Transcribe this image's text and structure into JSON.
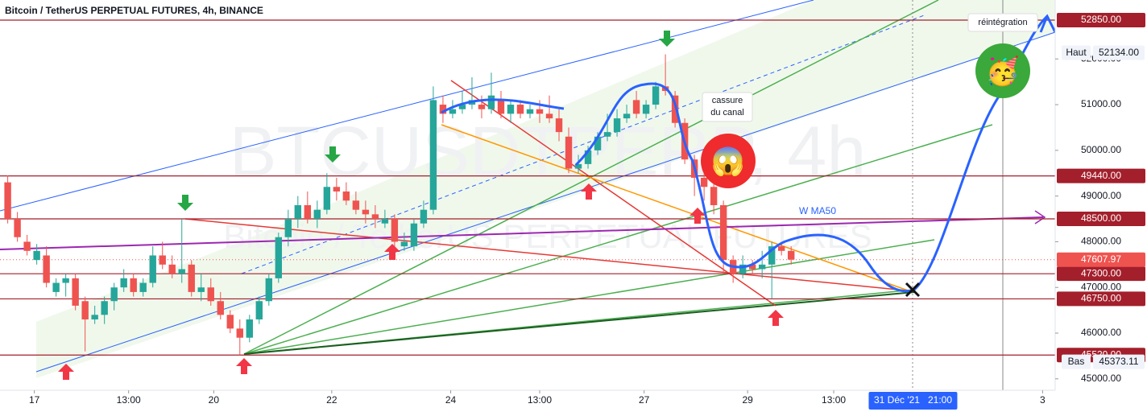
{
  "header": {
    "title": "Bitcoin / TetherUS PERPETUAL FUTURES, 4h, BINANCE"
  },
  "watermark": {
    "symbol": "BTCUSDTPERP, 4h",
    "name": "Bitcoin / TetherUS PERPETUAL FUTURES"
  },
  "annotations": {
    "reintegration": "réintégration",
    "cassure": [
      "cassure",
      "du canal"
    ],
    "ma": "W MA50",
    "scared": "😱",
    "party": "🥳"
  },
  "chart_data": {
    "type": "candlestick",
    "up_color": "#26a69a",
    "down_color": "#ef5350",
    "xlim": [
      -0.8,
      108.3
    ],
    "ylim": [
      44750,
      53290
    ],
    "yticks": [
      {
        "value": 45000,
        "label": "45000.00"
      },
      {
        "value": 46000,
        "label": "46000.00"
      },
      {
        "value": 47000,
        "label": "47000.00"
      },
      {
        "value": 48000,
        "label": "48000.00"
      },
      {
        "value": 49000,
        "label": "49000.00"
      },
      {
        "value": 50000,
        "label": "50000.00"
      },
      {
        "value": 51000,
        "label": "51000.00"
      },
      {
        "value": 52000,
        "label": "52000.00"
      }
    ],
    "xticks": [
      {
        "value": 2.75,
        "label": "17"
      },
      {
        "value": 12.5,
        "label": "13:00"
      },
      {
        "value": 21.3,
        "label": "20"
      },
      {
        "value": 33.5,
        "label": "22"
      },
      {
        "value": 45.8,
        "label": "24"
      },
      {
        "value": 55,
        "label": "13:00"
      },
      {
        "value": 65.8,
        "label": "27"
      },
      {
        "value": 76.5,
        "label": "29"
      },
      {
        "value": 85.4,
        "label": "13:00"
      },
      {
        "value": 107,
        "label": "3"
      }
    ],
    "cursor_time": {
      "value": 93.6,
      "label": "31 Déc '21   21:00"
    },
    "levels": [
      {
        "value": 52850,
        "label": "52850.00"
      },
      {
        "value": 49440,
        "label": "49440.00"
      },
      {
        "value": 48500,
        "label": "48500.00"
      },
      {
        "value": 47300,
        "label": "47300.00"
      },
      {
        "value": 46750,
        "label": "46750.00"
      },
      {
        "value": 45520,
        "label": "45520.00"
      }
    ],
    "last_price": 47607.97,
    "high": {
      "name": "Haut",
      "value": {
        "value": 52134,
        "label": "52134.00"
      }
    },
    "low": {
      "name": "Bas",
      "value": 45373.11
    },
    "candles": [
      {
        "o": 49300,
        "h": 49450,
        "l": 48400,
        "c": 48500
      },
      {
        "o": 48500,
        "h": 48650,
        "l": 48000,
        "c": 48100
      },
      {
        "o": 48000,
        "h": 48150,
        "l": 47700,
        "c": 47800
      },
      {
        "o": 47600,
        "h": 47950,
        "l": 47500,
        "c": 47800
      },
      {
        "o": 47700,
        "h": 47900,
        "l": 47000,
        "c": 47100
      },
      {
        "o": 46900,
        "h": 47200,
        "l": 46800,
        "c": 47100
      },
      {
        "o": 47100,
        "h": 47300,
        "l": 46800,
        "c": 47200
      },
      {
        "o": 47200,
        "h": 47300,
        "l": 46500,
        "c": 46600
      },
      {
        "o": 46700,
        "h": 46800,
        "l": 45600,
        "c": 46300
      },
      {
        "o": 46300,
        "h": 46600,
        "l": 46200,
        "c": 46400
      },
      {
        "o": 46400,
        "h": 46800,
        "l": 46200,
        "c": 46700
      },
      {
        "o": 46700,
        "h": 47100,
        "l": 46500,
        "c": 47000
      },
      {
        "o": 47000,
        "h": 47400,
        "l": 46900,
        "c": 47200
      },
      {
        "o": 47200,
        "h": 47300,
        "l": 46800,
        "c": 46900
      },
      {
        "o": 46900,
        "h": 47200,
        "l": 46800,
        "c": 47100
      },
      {
        "o": 47100,
        "h": 47900,
        "l": 47000,
        "c": 47700
      },
      {
        "o": 47700,
        "h": 48000,
        "l": 47400,
        "c": 47500
      },
      {
        "o": 47500,
        "h": 47700,
        "l": 47200,
        "c": 47300
      },
      {
        "o": 47300,
        "h": 48500,
        "l": 47100,
        "c": 47400
      },
      {
        "o": 47500,
        "h": 47600,
        "l": 46800,
        "c": 46900
      },
      {
        "o": 46900,
        "h": 47300,
        "l": 46700,
        "c": 47000
      },
      {
        "o": 47000,
        "h": 47200,
        "l": 46600,
        "c": 46700
      },
      {
        "o": 46700,
        "h": 46900,
        "l": 46300,
        "c": 46400
      },
      {
        "o": 46400,
        "h": 46500,
        "l": 46000,
        "c": 46100
      },
      {
        "o": 46100,
        "h": 46300,
        "l": 45520,
        "c": 45900
      },
      {
        "o": 45900,
        "h": 46400,
        "l": 45800,
        "c": 46300
      },
      {
        "o": 46300,
        "h": 46800,
        "l": 46200,
        "c": 46700
      },
      {
        "o": 46700,
        "h": 47300,
        "l": 46600,
        "c": 47200
      },
      {
        "o": 47200,
        "h": 48200,
        "l": 47100,
        "c": 48100
      },
      {
        "o": 48100,
        "h": 48700,
        "l": 47900,
        "c": 48500
      },
      {
        "o": 48500,
        "h": 49000,
        "l": 48300,
        "c": 48800
      },
      {
        "o": 48800,
        "h": 49100,
        "l": 48400,
        "c": 48500
      },
      {
        "o": 48500,
        "h": 48900,
        "l": 48300,
        "c": 48700
      },
      {
        "o": 48700,
        "h": 49500,
        "l": 48600,
        "c": 49200
      },
      {
        "o": 49200,
        "h": 49400,
        "l": 48900,
        "c": 49100
      },
      {
        "o": 49100,
        "h": 49300,
        "l": 48800,
        "c": 48900
      },
      {
        "o": 48900,
        "h": 49100,
        "l": 48600,
        "c": 48700
      },
      {
        "o": 48700,
        "h": 48900,
        "l": 48400,
        "c": 48600
      },
      {
        "o": 48600,
        "h": 48800,
        "l": 48300,
        "c": 48500
      },
      {
        "o": 48400,
        "h": 48700,
        "l": 48300,
        "c": 48500
      },
      {
        "o": 48500,
        "h": 48600,
        "l": 47900,
        "c": 48000
      },
      {
        "o": 47900,
        "h": 48200,
        "l": 47800,
        "c": 48000
      },
      {
        "o": 47900,
        "h": 48500,
        "l": 47800,
        "c": 48400
      },
      {
        "o": 48400,
        "h": 48900,
        "l": 48300,
        "c": 48700
      },
      {
        "o": 48700,
        "h": 51400,
        "l": 48600,
        "c": 51100
      },
      {
        "o": 51000,
        "h": 51200,
        "l": 50600,
        "c": 50800
      },
      {
        "o": 50800,
        "h": 51100,
        "l": 50700,
        "c": 50900
      },
      {
        "o": 50900,
        "h": 51300,
        "l": 50800,
        "c": 51000
      },
      {
        "o": 51000,
        "h": 51600,
        "l": 50900,
        "c": 51100
      },
      {
        "o": 51000,
        "h": 51200,
        "l": 50700,
        "c": 50900
      },
      {
        "o": 50900,
        "h": 51700,
        "l": 50800,
        "c": 51200
      },
      {
        "o": 51100,
        "h": 51300,
        "l": 50700,
        "c": 50800
      },
      {
        "o": 50800,
        "h": 51100,
        "l": 50600,
        "c": 51000
      },
      {
        "o": 51000,
        "h": 51100,
        "l": 50700,
        "c": 50800
      },
      {
        "o": 50800,
        "h": 51000,
        "l": 50700,
        "c": 50900
      },
      {
        "o": 50900,
        "h": 51100,
        "l": 50600,
        "c": 50800
      },
      {
        "o": 50800,
        "h": 51200,
        "l": 50600,
        "c": 50700
      },
      {
        "o": 50700,
        "h": 50900,
        "l": 50200,
        "c": 50400
      },
      {
        "o": 50300,
        "h": 50500,
        "l": 49500,
        "c": 49600
      },
      {
        "o": 49600,
        "h": 49900,
        "l": 49500,
        "c": 49700
      },
      {
        "o": 49700,
        "h": 50100,
        "l": 49600,
        "c": 50000
      },
      {
        "o": 50000,
        "h": 50400,
        "l": 49900,
        "c": 50300
      },
      {
        "o": 50300,
        "h": 50800,
        "l": 50200,
        "c": 50400
      },
      {
        "o": 50400,
        "h": 50900,
        "l": 50300,
        "c": 50700
      },
      {
        "o": 50700,
        "h": 51000,
        "l": 50600,
        "c": 50800
      },
      {
        "o": 51100,
        "h": 51300,
        "l": 50700,
        "c": 50800
      },
      {
        "o": 50800,
        "h": 51100,
        "l": 50700,
        "c": 51000
      },
      {
        "o": 51000,
        "h": 51500,
        "l": 50900,
        "c": 51400
      },
      {
        "o": 51400,
        "h": 52100,
        "l": 51200,
        "c": 51300
      },
      {
        "o": 51200,
        "h": 51300,
        "l": 50500,
        "c": 50600
      },
      {
        "o": 50600,
        "h": 50700,
        "l": 49700,
        "c": 49800
      },
      {
        "o": 49800,
        "h": 49900,
        "l": 49000,
        "c": 49400
      },
      {
        "o": 49400,
        "h": 49500,
        "l": 48900,
        "c": 49200
      },
      {
        "o": 49200,
        "h": 49300,
        "l": 48600,
        "c": 48800
      },
      {
        "o": 48800,
        "h": 48900,
        "l": 47300,
        "c": 47600
      },
      {
        "o": 47600,
        "h": 47700,
        "l": 47100,
        "c": 47300
      },
      {
        "o": 47300,
        "h": 47700,
        "l": 47200,
        "c": 47500
      },
      {
        "o": 47500,
        "h": 47600,
        "l": 47300,
        "c": 47400
      },
      {
        "o": 47400,
        "h": 47800,
        "l": 47200,
        "c": 47500
      },
      {
        "o": 47500,
        "h": 48000,
        "l": 46750,
        "c": 47900
      },
      {
        "o": 47900,
        "h": 48000,
        "l": 47700,
        "c": 47800
      },
      {
        "o": 47800,
        "h": 47900,
        "l": 47500,
        "c": 47607.97
      }
    ]
  }
}
